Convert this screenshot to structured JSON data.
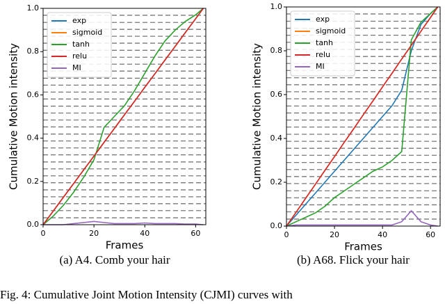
{
  "chart_data": [
    {
      "type": "line",
      "caption": "(a) A4. Comb your hair",
      "xlabel": "Frames",
      "ylabel": "Cumulative Motion intensity",
      "x": [
        0,
        4,
        8,
        12,
        16,
        20,
        24,
        28,
        32,
        36,
        40,
        44,
        48,
        52,
        56,
        60,
        63
      ],
      "series": [
        {
          "name": "exp",
          "color": "#1f77b4",
          "values": [
            0,
            0.063,
            0.127,
            0.19,
            0.254,
            0.317,
            0.381,
            0.444,
            0.508,
            0.571,
            0.635,
            0.698,
            0.762,
            0.825,
            0.889,
            0.952,
            1.0
          ]
        },
        {
          "name": "sigmoid",
          "color": "#ff7f0e",
          "values": [
            0,
            0.063,
            0.127,
            0.19,
            0.254,
            0.317,
            0.381,
            0.444,
            0.508,
            0.571,
            0.635,
            0.698,
            0.762,
            0.825,
            0.889,
            0.952,
            1.0
          ]
        },
        {
          "name": "tanh",
          "color": "#2ca02c",
          "values": [
            0,
            0.04,
            0.09,
            0.15,
            0.22,
            0.3,
            0.45,
            0.5,
            0.55,
            0.62,
            0.7,
            0.78,
            0.85,
            0.9,
            0.94,
            0.97,
            1.0
          ]
        },
        {
          "name": "relu",
          "color": "#d62728",
          "values": [
            0,
            0.063,
            0.127,
            0.19,
            0.254,
            0.317,
            0.381,
            0.444,
            0.508,
            0.571,
            0.635,
            0.698,
            0.762,
            0.825,
            0.889,
            0.952,
            1.0
          ]
        },
        {
          "name": "MI",
          "color": "#9467bd",
          "values": [
            0,
            0,
            0,
            0.005,
            0.01,
            0.015,
            0.01,
            0.005,
            0.005,
            0.005,
            0.008,
            0.005,
            0.005,
            0.005,
            0.003,
            0.003,
            0
          ]
        }
      ],
      "xlim": [
        0,
        64
      ],
      "ylim": [
        0,
        1
      ],
      "xticks": [
        0,
        20,
        40,
        60
      ],
      "yticks": [
        {
          "value": 0,
          "label": "0.0"
        },
        0.2,
        0.4,
        0.6,
        0.8,
        {
          "value": 1,
          "label": "1.0"
        }
      ],
      "reference_lines": [
        0.032,
        0.065,
        0.097,
        0.129,
        0.161,
        0.194,
        0.226,
        0.258,
        0.29,
        0.323,
        0.355,
        0.387,
        0.419,
        0.452,
        0.484,
        0.516,
        0.548,
        0.581,
        0.613,
        0.645,
        0.677,
        0.71,
        0.742,
        0.774,
        0.806,
        0.839,
        0.871,
        0.903,
        0.935,
        0.968
      ],
      "legend": "upper left"
    },
    {
      "type": "line",
      "caption": "(b) A68. Flick your hair",
      "xlabel": "Frames",
      "ylabel": "Cumulative Motion intensity",
      "x": [
        0,
        4,
        8,
        12,
        16,
        20,
        24,
        28,
        32,
        36,
        40,
        44,
        48,
        52,
        56,
        60,
        63
      ],
      "series": [
        {
          "name": "exp",
          "color": "#1f77b4",
          "values": [
            0,
            0.05,
            0.1,
            0.15,
            0.2,
            0.25,
            0.3,
            0.35,
            0.4,
            0.45,
            0.5,
            0.55,
            0.62,
            0.8,
            0.92,
            0.97,
            1.0
          ]
        },
        {
          "name": "sigmoid",
          "color": "#ff7f0e",
          "values": [
            0,
            0.063,
            0.127,
            0.19,
            0.254,
            0.317,
            0.381,
            0.444,
            0.508,
            0.571,
            0.635,
            0.698,
            0.762,
            0.825,
            0.889,
            0.952,
            1.0
          ]
        },
        {
          "name": "tanh",
          "color": "#2ca02c",
          "values": [
            0,
            0.02,
            0.04,
            0.06,
            0.09,
            0.13,
            0.16,
            0.19,
            0.22,
            0.25,
            0.27,
            0.3,
            0.34,
            0.85,
            0.93,
            0.97,
            1.0
          ]
        },
        {
          "name": "relu",
          "color": "#d62728",
          "values": [
            0,
            0.063,
            0.127,
            0.19,
            0.254,
            0.317,
            0.381,
            0.444,
            0.508,
            0.571,
            0.635,
            0.698,
            0.762,
            0.825,
            0.889,
            0.952,
            1.0
          ]
        },
        {
          "name": "MI",
          "color": "#9467bd",
          "values": [
            0,
            0.005,
            0.005,
            0.005,
            0.005,
            0.005,
            0.005,
            0.005,
            0.005,
            0.005,
            0.005,
            0.005,
            0.02,
            0.07,
            0.02,
            0.005,
            0
          ]
        }
      ],
      "xlim": [
        0,
        64
      ],
      "ylim": [
        0,
        1
      ],
      "xticks": [
        0,
        20,
        40,
        60
      ],
      "yticks": [
        {
          "value": 0,
          "label": "0.0"
        },
        0.2,
        0.4,
        0.6,
        0.8,
        {
          "value": 1,
          "label": "1.0"
        }
      ],
      "reference_lines": [
        0.032,
        0.065,
        0.097,
        0.129,
        0.161,
        0.194,
        0.226,
        0.258,
        0.29,
        0.323,
        0.355,
        0.387,
        0.419,
        0.452,
        0.484,
        0.516,
        0.548,
        0.581,
        0.613,
        0.645,
        0.677,
        0.71,
        0.742,
        0.774,
        0.806,
        0.839,
        0.871,
        0.903,
        0.935,
        0.968
      ],
      "legend": "upper left"
    }
  ],
  "figure_caption": "Fig. 4: Cumulative Joint Motion Intensity (CJMI) curves with"
}
